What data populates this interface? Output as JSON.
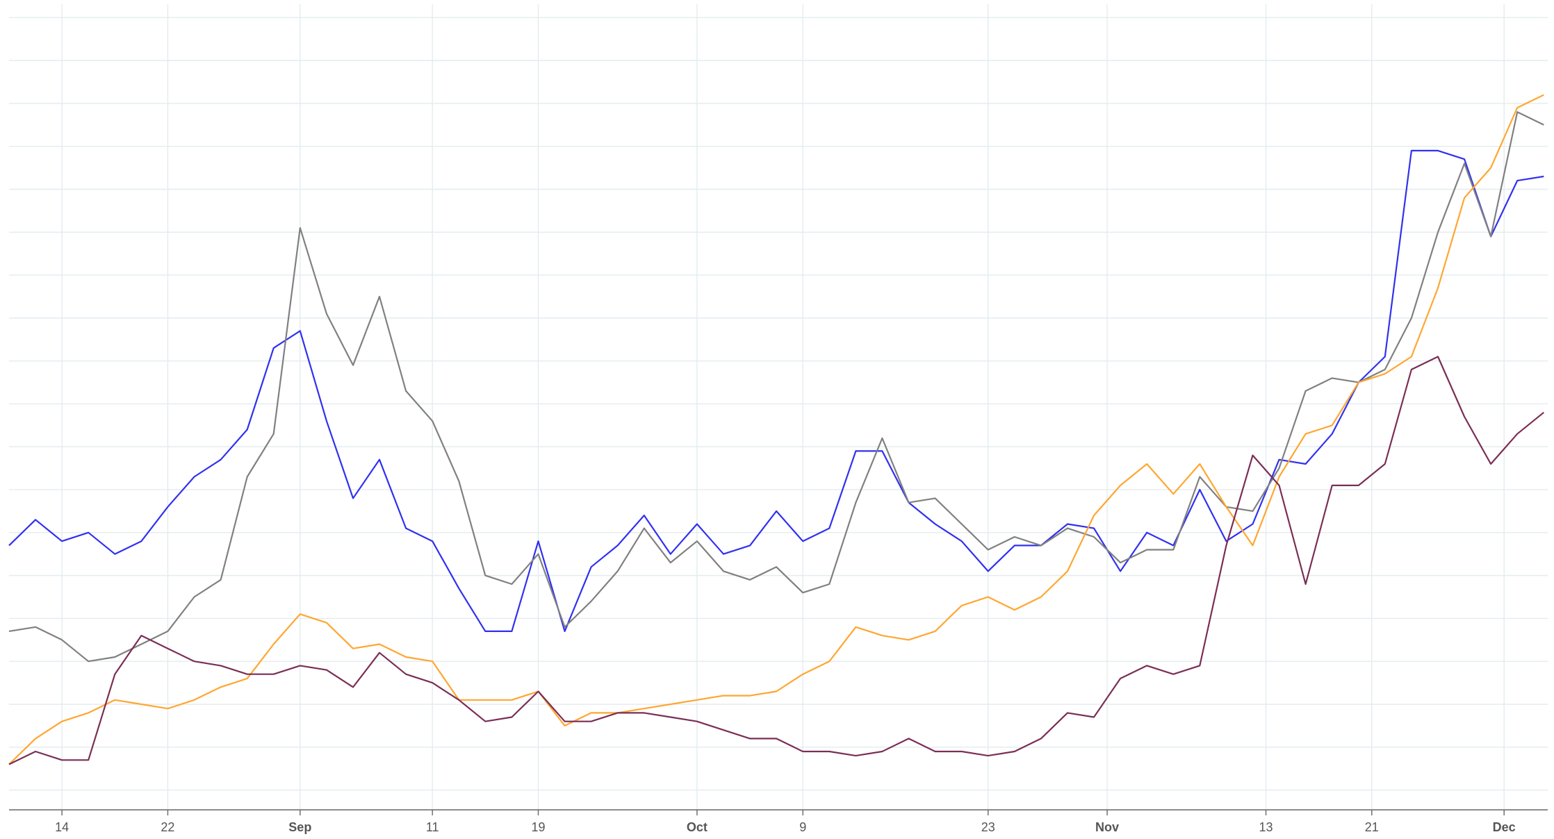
{
  "chart_data": {
    "type": "line",
    "x": [
      0,
      2,
      4,
      6,
      8,
      10,
      12,
      14,
      16,
      18,
      20,
      22,
      24,
      26,
      28,
      30,
      32,
      34,
      36,
      38,
      40,
      42,
      44,
      46,
      48,
      50,
      52,
      54,
      56,
      58,
      60,
      62,
      64,
      66,
      68,
      70,
      72,
      74,
      76,
      78,
      80,
      82,
      84,
      86,
      88,
      90,
      92,
      94,
      96,
      98,
      100,
      102,
      104,
      106,
      108,
      110,
      112,
      114,
      116
    ],
    "series": [
      {
        "color": "#3030f0",
        "values": [
          5.7,
          6.3,
          5.8,
          6.0,
          5.5,
          5.8,
          6.6,
          7.3,
          7.7,
          8.4,
          10.3,
          10.7,
          8.6,
          6.8,
          7.7,
          6.1,
          5.8,
          4.7,
          3.7,
          3.7,
          5.8,
          3.7,
          5.2,
          5.7,
          6.4,
          5.5,
          6.2,
          5.5,
          5.7,
          6.5,
          5.8,
          6.1,
          7.9,
          7.9,
          6.7,
          6.2,
          5.8,
          5.1,
          5.7,
          5.7,
          6.2,
          6.1,
          5.1,
          6.0,
          5.7,
          7.0,
          5.8,
          6.2,
          7.7,
          7.6,
          8.3,
          9.5,
          10.1,
          14.9,
          14.9,
          14.7,
          12.9,
          14.2,
          14.3
        ]
      },
      {
        "color": "#808080",
        "values": [
          3.7,
          3.8,
          3.5,
          3.0,
          3.1,
          3.4,
          3.7,
          4.5,
          4.9,
          7.3,
          8.3,
          13.1,
          11.1,
          9.9,
          11.5,
          9.3,
          8.6,
          7.2,
          5.0,
          4.8,
          5.5,
          3.8,
          4.4,
          5.1,
          6.1,
          5.3,
          5.8,
          5.1,
          4.9,
          5.2,
          4.6,
          4.8,
          6.7,
          8.2,
          6.7,
          6.8,
          6.2,
          5.6,
          5.9,
          5.7,
          6.1,
          5.9,
          5.3,
          5.6,
          5.6,
          7.3,
          6.6,
          6.5,
          7.5,
          9.3,
          9.6,
          9.5,
          9.8,
          11.0,
          13.0,
          14.6,
          12.9,
          15.8,
          15.5
        ]
      },
      {
        "color": "#ffa630",
        "values": [
          0.6,
          1.2,
          1.6,
          1.8,
          2.1,
          2.0,
          1.9,
          2.1,
          2.4,
          2.6,
          3.4,
          4.1,
          3.9,
          3.3,
          3.4,
          3.1,
          3.0,
          2.1,
          2.1,
          2.1,
          2.3,
          1.5,
          1.8,
          1.8,
          1.9,
          2.0,
          2.1,
          2.2,
          2.2,
          2.3,
          2.7,
          3.0,
          3.8,
          3.6,
          3.5,
          3.7,
          4.3,
          4.5,
          4.2,
          4.5,
          5.1,
          6.4,
          7.1,
          7.6,
          6.9,
          7.6,
          6.6,
          5.7,
          7.3,
          8.3,
          8.5,
          9.5,
          9.7,
          10.1,
          11.7,
          13.8,
          14.5,
          15.9,
          16.2
        ]
      },
      {
        "color": "#7a2e55",
        "values": [
          0.6,
          0.9,
          0.7,
          0.7,
          2.7,
          3.6,
          3.3,
          3.0,
          2.9,
          2.7,
          2.7,
          2.9,
          2.8,
          2.4,
          3.2,
          2.7,
          2.5,
          2.1,
          1.6,
          1.7,
          2.3,
          1.6,
          1.6,
          1.8,
          1.8,
          1.7,
          1.6,
          1.4,
          1.2,
          1.2,
          0.9,
          0.9,
          0.8,
          0.9,
          1.2,
          0.9,
          0.9,
          0.8,
          0.9,
          1.2,
          1.8,
          1.7,
          2.6,
          2.9,
          2.7,
          2.9,
          5.7,
          7.8,
          7.1,
          4.8,
          7.1,
          7.1,
          7.6,
          9.8,
          10.1,
          8.7,
          7.6,
          8.3,
          8.8
        ]
      }
    ],
    "xlim": [
      0,
      116.3
    ],
    "xticks": [
      {
        "value": 4,
        "label": "14"
      },
      {
        "value": 12,
        "label": "22"
      },
      {
        "value": 22,
        "label": "Sep"
      },
      {
        "value": 32,
        "label": "11"
      },
      {
        "value": 40,
        "label": "19"
      },
      {
        "value": 52,
        "label": "Oct"
      },
      {
        "value": 60,
        "label": "9"
      },
      {
        "value": 74,
        "label": "23"
      },
      {
        "value": 83,
        "label": "Nov"
      },
      {
        "value": 95,
        "label": "13"
      },
      {
        "value": 103,
        "label": "21"
      },
      {
        "value": 113,
        "label": "Dec"
      }
    ],
    "ylim": [
      -0.46,
      18.41
    ],
    "yticks": [
      0,
      1,
      2,
      3,
      4,
      5,
      6,
      7,
      8,
      9,
      10,
      11,
      12,
      13,
      14,
      15,
      16,
      17,
      18
    ],
    "grid": true
  }
}
